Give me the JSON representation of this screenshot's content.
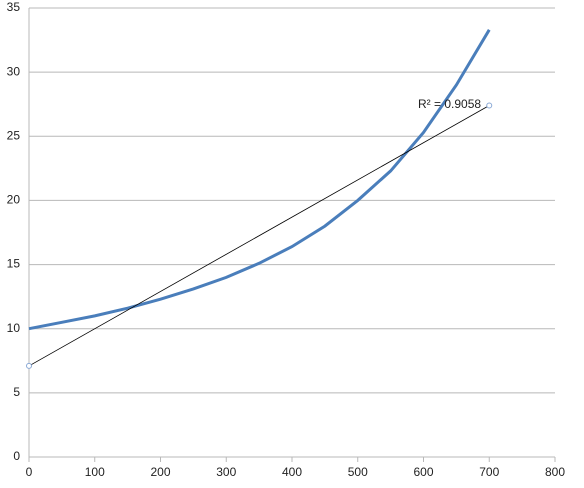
{
  "chart_data": {
    "type": "line",
    "x": [
      0,
      50,
      100,
      150,
      200,
      250,
      300,
      350,
      400,
      450,
      500,
      550,
      600,
      650,
      700
    ],
    "series": [
      {
        "color": "#4a7ebb",
        "values": [
          10,
          10.5,
          11,
          11.6,
          12.3,
          13.1,
          14,
          15.1,
          16.4,
          18,
          20,
          22.3,
          25.3,
          29,
          33.3
        ]
      },
      {
        "color": "#000000",
        "x": [
          0,
          700
        ],
        "values": [
          7.1,
          27.4
        ],
        "marker_color": "#8aa9d6"
      }
    ],
    "annotations": [
      "R² = 0.9058"
    ],
    "xlim": [
      0,
      800
    ],
    "xticks": [
      0,
      100,
      200,
      300,
      400,
      500,
      600,
      700,
      800
    ],
    "ylim": [
      0,
      35
    ],
    "yticks": [
      0,
      5,
      10,
      15,
      20,
      25,
      30,
      35
    ],
    "grid": true
  }
}
